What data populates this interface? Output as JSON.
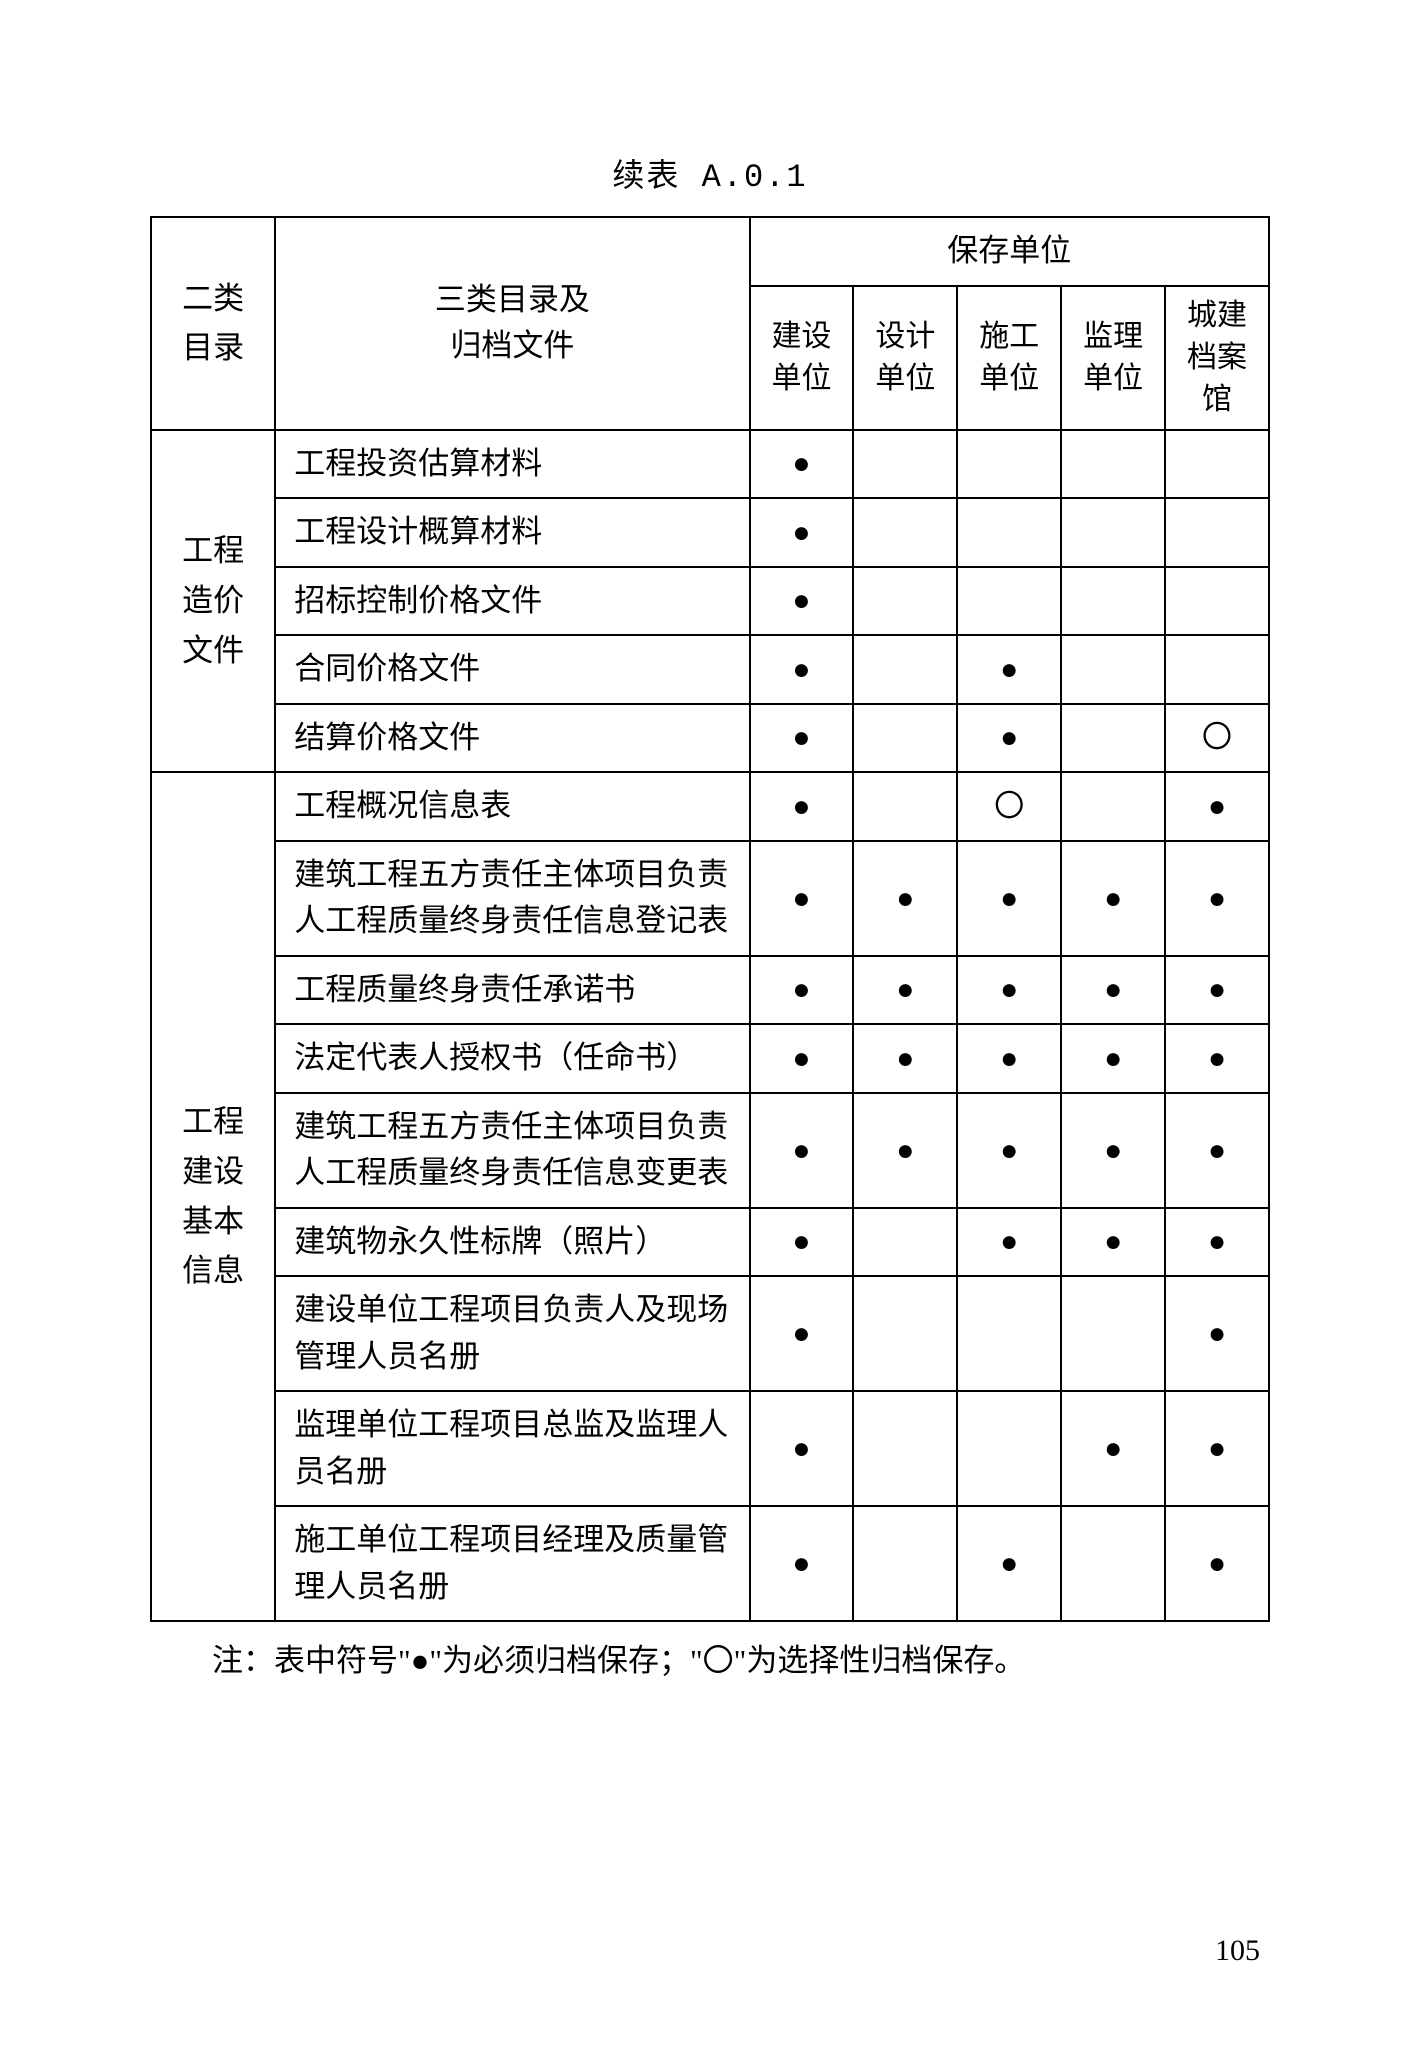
{
  "title": "续表 A.0.1",
  "headers": {
    "cat2": "二类\n目录",
    "cat3": "三类目录及\n归档文件",
    "group": "保存单位",
    "units": [
      "建设\n单位",
      "设计\n单位",
      "施工\n单位",
      "监理\n单位",
      "城建\n档案\n馆"
    ]
  },
  "symbols": {
    "filled": "●",
    "hollow": "〇",
    "empty": ""
  },
  "sections": [
    {
      "cat2": "工程\n造价\n文件",
      "rows": [
        {
          "label": "工程投资估算材料",
          "marks": [
            "filled",
            "empty",
            "empty",
            "empty",
            "empty"
          ]
        },
        {
          "label": "工程设计概算材料",
          "marks": [
            "filled",
            "empty",
            "empty",
            "empty",
            "empty"
          ]
        },
        {
          "label": "招标控制价格文件",
          "marks": [
            "filled",
            "empty",
            "empty",
            "empty",
            "empty"
          ]
        },
        {
          "label": "合同价格文件",
          "marks": [
            "filled",
            "empty",
            "filled",
            "empty",
            "empty"
          ]
        },
        {
          "label": "结算价格文件",
          "marks": [
            "filled",
            "empty",
            "filled",
            "empty",
            "hollow"
          ]
        }
      ]
    },
    {
      "cat2": "工程\n建设\n基本\n信息",
      "rows": [
        {
          "label": "工程概况信息表",
          "marks": [
            "filled",
            "empty",
            "hollow",
            "empty",
            "filled"
          ]
        },
        {
          "label": "建筑工程五方责任主体项目负责人工程质量终身责任信息登记表",
          "marks": [
            "filled",
            "filled",
            "filled",
            "filled",
            "filled"
          ]
        },
        {
          "label": "工程质量终身责任承诺书",
          "marks": [
            "filled",
            "filled",
            "filled",
            "filled",
            "filled"
          ]
        },
        {
          "label": "法定代表人授权书（任命书）",
          "marks": [
            "filled",
            "filled",
            "filled",
            "filled",
            "filled"
          ]
        },
        {
          "label": "建筑工程五方责任主体项目负责人工程质量终身责任信息变更表",
          "marks": [
            "filled",
            "filled",
            "filled",
            "filled",
            "filled"
          ]
        },
        {
          "label": "建筑物永久性标牌（照片）",
          "marks": [
            "filled",
            "empty",
            "filled",
            "filled",
            "filled"
          ]
        },
        {
          "label": "建设单位工程项目负责人及现场管理人员名册",
          "marks": [
            "filled",
            "empty",
            "empty",
            "empty",
            "filled"
          ]
        },
        {
          "label": "监理单位工程项目总监及监理人员名册",
          "marks": [
            "filled",
            "empty",
            "empty",
            "filled",
            "filled"
          ]
        },
        {
          "label": "施工单位工程项目经理及质量管理人员名册",
          "marks": [
            "filled",
            "empty",
            "filled",
            "empty",
            "filled"
          ]
        }
      ]
    }
  ],
  "footnote": "注：表中符号\"●\"为必须归档保存；\"〇\"为选择性归档保存。",
  "pageNumber": "105"
}
